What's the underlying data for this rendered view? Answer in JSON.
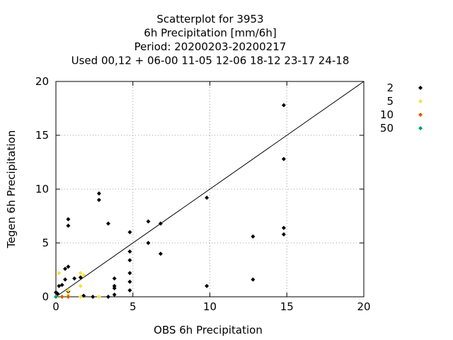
{
  "chart_data": {
    "type": "scatter",
    "title_lines": [
      "Scatterplot for     3953",
      "6h Precipitation [mm/6h]",
      "Period: 20200203-20200217",
      "Used  00,12  + 06-00 11-05 12-06 18-12 23-17 24-18"
    ],
    "xlabel": "OBS 6h Precipitation",
    "ylabel": "Tegen 6h Precipitation",
    "xlim": [
      0,
      20
    ],
    "ylim": [
      0,
      20
    ],
    "xticks": [
      "0",
      "5",
      "10",
      "15",
      "20"
    ],
    "yticks": [
      "0",
      "5",
      "10",
      "15",
      "20"
    ],
    "grid": true,
    "diagonal": true,
    "legend_position": "right",
    "series": [
      {
        "name": "2",
        "color": "#000000",
        "points": [
          [
            0.0,
            0.4
          ],
          [
            0.1,
            0.3
          ],
          [
            0.2,
            1.0
          ],
          [
            0.4,
            1.1
          ],
          [
            0.6,
            1.6
          ],
          [
            0.6,
            2.6
          ],
          [
            0.8,
            2.8
          ],
          [
            0.8,
            7.2
          ],
          [
            0.8,
            6.6
          ],
          [
            0.8,
            0.5
          ],
          [
            1.2,
            1.7
          ],
          [
            1.8,
            0.1
          ],
          [
            1.6,
            1.8
          ],
          [
            2.4,
            0.0
          ],
          [
            2.8,
            9.6
          ],
          [
            2.8,
            9.0
          ],
          [
            3.4,
            6.8
          ],
          [
            3.4,
            0.0
          ],
          [
            3.8,
            1.7
          ],
          [
            3.8,
            1.0
          ],
          [
            3.8,
            0.8
          ],
          [
            3.8,
            0.2
          ],
          [
            4.8,
            6.0
          ],
          [
            4.8,
            4.2
          ],
          [
            4.8,
            3.4
          ],
          [
            4.8,
            2.2
          ],
          [
            4.8,
            1.4
          ],
          [
            4.8,
            0.6
          ],
          [
            6.0,
            7.0
          ],
          [
            6.0,
            5.0
          ],
          [
            6.8,
            6.8
          ],
          [
            6.8,
            4.0
          ],
          [
            9.8,
            9.2
          ],
          [
            9.8,
            1.0
          ],
          [
            12.8,
            5.6
          ],
          [
            12.8,
            1.6
          ],
          [
            14.8,
            17.8
          ],
          [
            14.8,
            12.8
          ],
          [
            14.8,
            6.4
          ],
          [
            14.8,
            5.8
          ]
        ]
      },
      {
        "name": "5",
        "color": "#f0e442",
        "points": [
          [
            0.2,
            2.2
          ],
          [
            0.8,
            0.6
          ],
          [
            0.8,
            0.2
          ],
          [
            1.6,
            2.2
          ],
          [
            1.8,
            2.0
          ],
          [
            1.6,
            1.0
          ],
          [
            1.6,
            0.0
          ],
          [
            2.8,
            0.0
          ]
        ]
      },
      {
        "name": "10",
        "color": "#d55e00",
        "points": [
          [
            0.4,
            0.0
          ],
          [
            0.8,
            0.0
          ]
        ]
      },
      {
        "name": "50",
        "color": "#009e73",
        "points": [
          [
            0.0,
            0.0
          ]
        ]
      }
    ]
  }
}
